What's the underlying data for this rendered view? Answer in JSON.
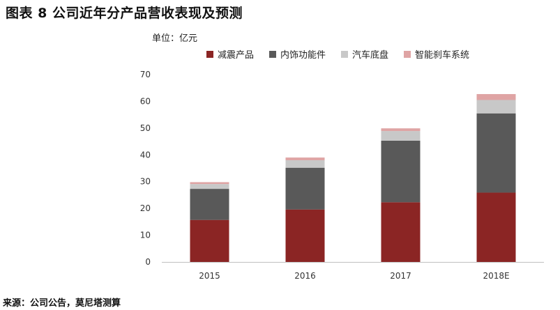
{
  "figure": {
    "title": "图表 8 公司近年分产品营收表现及预测",
    "source": "来源：公司公告，莫尼塔测算"
  },
  "chart_data": {
    "type": "bar",
    "stacked": true,
    "unit_label": "单位：亿元",
    "categories": [
      "2015",
      "2016",
      "2017",
      "2018E"
    ],
    "ylim": [
      0,
      70
    ],
    "yticks": [
      0,
      10,
      20,
      30,
      40,
      50,
      60,
      70
    ],
    "grid": false,
    "legend_position": "top",
    "series": [
      {
        "name": "减震产品",
        "color": "#8b2524",
        "values": [
          15.7,
          19.6,
          22.3,
          25.9
        ]
      },
      {
        "name": "内饰功能件",
        "color": "#595959",
        "values": [
          11.6,
          15.6,
          23.0,
          29.6
        ]
      },
      {
        "name": "汽车底盘",
        "color": "#c8c8c8",
        "values": [
          1.8,
          2.8,
          3.6,
          5.0
        ]
      },
      {
        "name": "智能刹车系统",
        "color": "#dfa4a4",
        "values": [
          0.7,
          1.0,
          1.0,
          2.2
        ]
      }
    ]
  }
}
